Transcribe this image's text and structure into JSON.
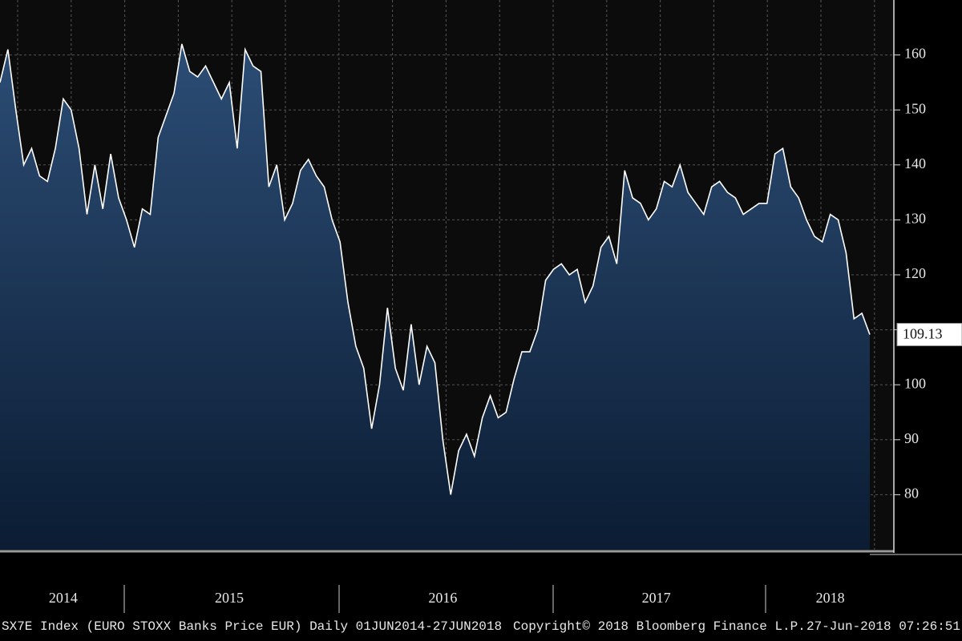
{
  "chart_data": {
    "type": "area",
    "categories": [
      null,
      null,
      null,
      null,
      null,
      null,
      null,
      null,
      "2014",
      null,
      null,
      null,
      null,
      null,
      null,
      null,
      null,
      null,
      null,
      null,
      null,
      null,
      null,
      null,
      null,
      null,
      null,
      null,
      null,
      "2015",
      null,
      null,
      null,
      null,
      null,
      null,
      null,
      null,
      null,
      null,
      null,
      null,
      null,
      null,
      null,
      null,
      null,
      null,
      null,
      null,
      null,
      null,
      null,
      null,
      null,
      null,
      "2016",
      null,
      null,
      null,
      null,
      null,
      null,
      null,
      null,
      null,
      null,
      null,
      null,
      null,
      null,
      null,
      null,
      null,
      null,
      null,
      null,
      null,
      null,
      null,
      null,
      null,
      null,
      "2017",
      null,
      null,
      null,
      null,
      null,
      null,
      null,
      null,
      null,
      null,
      null,
      null,
      null,
      null,
      null,
      null,
      null,
      null,
      null,
      null,
      null,
      "2018",
      null,
      null,
      null,
      null,
      null
    ],
    "values": [
      155,
      161,
      150,
      140,
      143,
      138,
      137,
      143,
      152,
      150,
      143,
      131,
      140,
      132,
      142,
      134,
      130,
      125,
      132,
      131,
      145,
      149,
      153,
      162,
      157,
      156,
      158,
      155,
      152,
      155,
      143,
      161,
      158,
      157,
      136,
      140,
      130,
      133,
      139,
      141,
      138,
      136,
      130,
      126,
      115,
      107,
      103,
      92,
      100,
      114,
      103,
      99,
      111,
      100,
      107,
      104,
      90,
      80,
      88,
      91,
      87,
      94,
      98,
      94,
      95,
      101,
      106,
      106,
      110,
      119,
      121,
      122,
      120,
      121,
      115,
      118,
      125,
      127,
      122,
      139,
      134,
      133,
      130,
      132,
      137,
      136,
      140,
      135,
      133,
      131,
      136,
      137,
      135,
      134,
      131,
      132,
      133,
      133,
      142,
      143,
      136,
      134,
      130,
      127,
      126,
      131,
      130,
      124,
      112,
      113,
      109.13
    ],
    "line_color": "#ffffff",
    "area_top_color": "#2c4d75",
    "area_bottom_color": "#0b1c33",
    "ylim": [
      70,
      170
    ],
    "yticks": [
      80,
      90,
      100,
      110,
      120,
      130,
      140,
      150,
      160
    ],
    "grid": true,
    "footer_left": "SX7E Index (EURO STOXX Banks Price EUR)  Daily 01JUN2014-27JUN2018",
    "footer_center": "Copyright© 2018 Bloomberg Finance L.P.",
    "footer_right": "27-Jun-2018 07:26:51"
  }
}
